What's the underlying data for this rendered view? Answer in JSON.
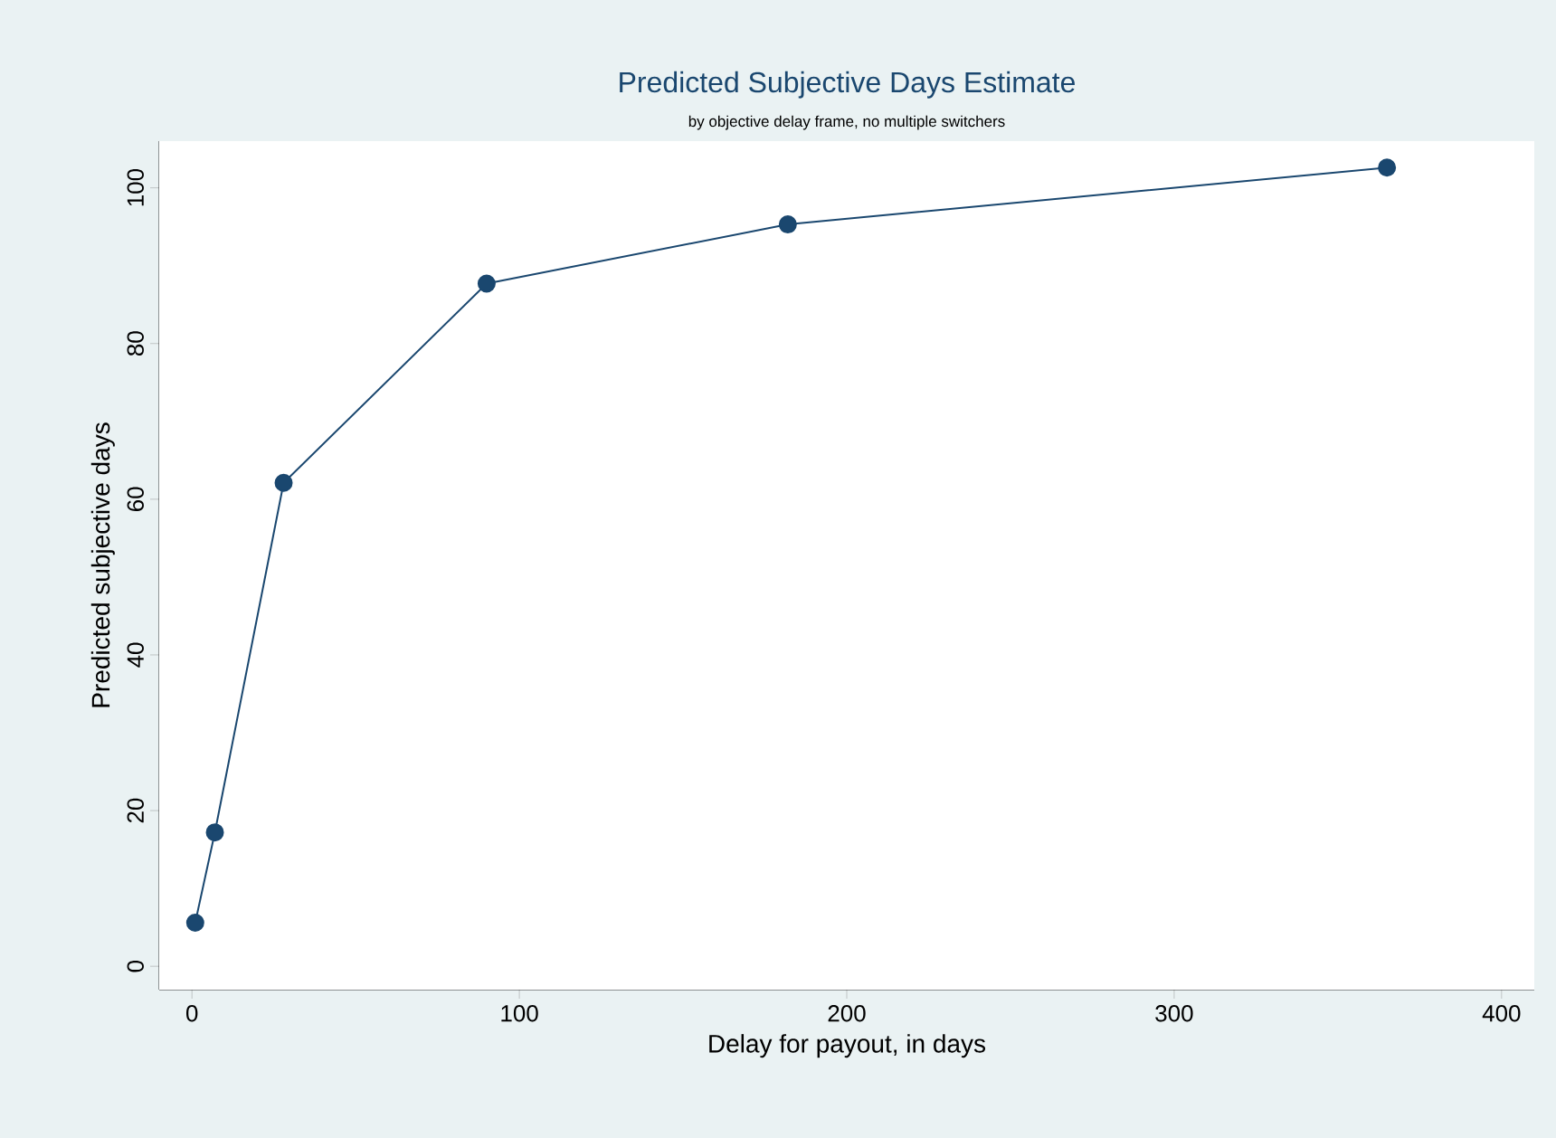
{
  "chart_data": {
    "type": "line",
    "title": "Predicted Subjective Days Estimate",
    "subtitle": "by objective delay frame, no multiple switchers",
    "xlabel": "Delay for payout, in days",
    "ylabel": "Predicted subjective days",
    "x": [
      1,
      7,
      28,
      90,
      182,
      365
    ],
    "series": [
      {
        "color": "#1a476f",
        "values": [
          5.6,
          17.2,
          62.1,
          87.7,
          95.3,
          102.6
        ]
      }
    ],
    "marker": "circle",
    "line_style": "solid",
    "xlim": [
      -10,
      410
    ],
    "ylim": [
      -3,
      106
    ],
    "xticks": [
      0,
      100,
      200,
      300,
      400
    ],
    "yticks": [
      0,
      20,
      40,
      60,
      80,
      100
    ]
  }
}
